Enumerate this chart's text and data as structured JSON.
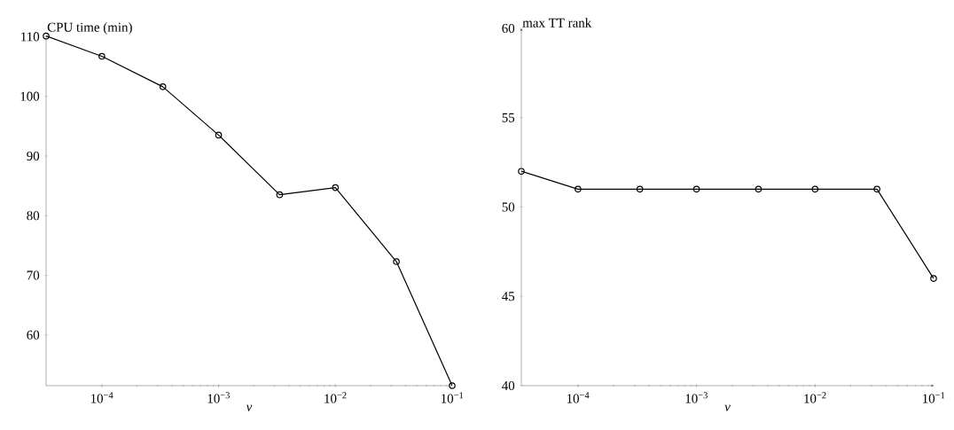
{
  "chart_data": [
    {
      "type": "line",
      "ylabel": "CPU time (min)",
      "xlabel": "ν",
      "log": "x",
      "marker": "circle",
      "grid": false,
      "x": [
        3.33e-05,
        0.0001,
        0.000333,
        0.001,
        0.00333,
        0.01,
        0.0333,
        0.1
      ],
      "series": [
        {
          "color": "#000000",
          "values": [
            110.1,
            106.7,
            101.6,
            93.5,
            83.5,
            84.7,
            72.3,
            51.5
          ]
        }
      ],
      "xlim": [
        3.33e-05,
        0.1
      ],
      "ylim": [
        51.5,
        110.2
      ],
      "xticks": [
        {
          "value": 0.0001,
          "label": "10$^{−4}$"
        },
        {
          "value": 0.001,
          "label": "10$^{−3}$"
        },
        {
          "value": 0.01,
          "label": "10$^{−2}$"
        },
        {
          "value": 0.1,
          "label": "10$^{−1}$"
        }
      ],
      "yticks": [
        60,
        70,
        80,
        90,
        100,
        110
      ]
    },
    {
      "type": "line",
      "ylabel": "max TT rank",
      "xlabel": "ν",
      "log": "x",
      "marker": "circle",
      "grid": false,
      "x": [
        3.33e-05,
        0.0001,
        0.000333,
        0.001,
        0.00333,
        0.01,
        0.0333,
        0.1
      ],
      "series": [
        {
          "color": "#000000",
          "values": [
            52,
            51,
            51,
            51,
            51,
            51,
            51,
            46
          ]
        }
      ],
      "xlim": [
        3.33e-05,
        0.1
      ],
      "ylim": [
        40,
        60
      ],
      "xticks": [
        {
          "value": 0.0001,
          "label": "10$^{−4}$"
        },
        {
          "value": 0.001,
          "label": "10$^{−3}$"
        },
        {
          "value": 0.01,
          "label": "10$^{−2}$"
        },
        {
          "value": 0.1,
          "label": "10$^{−1}$"
        }
      ],
      "yticks": [
        40,
        45,
        50,
        55,
        60
      ]
    }
  ]
}
